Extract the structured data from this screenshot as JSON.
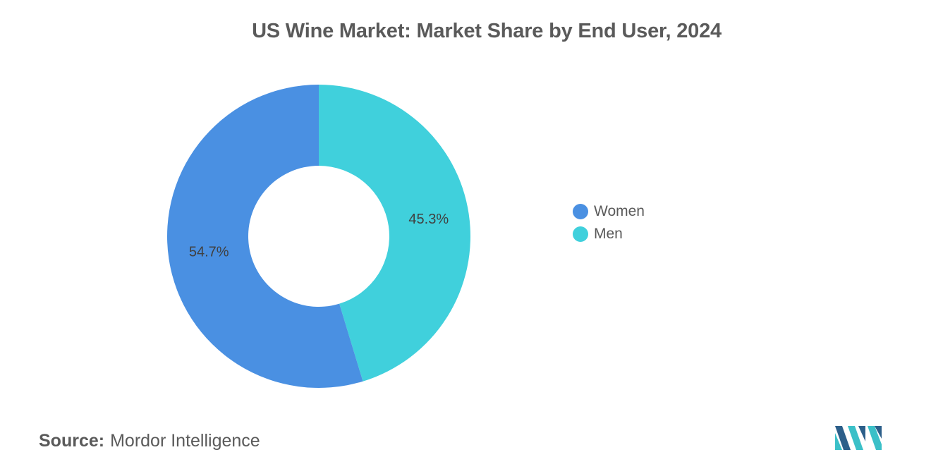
{
  "chart_data": {
    "type": "pie",
    "title": "US Wine Market: Market Share by End User, 2024",
    "donut": true,
    "slices": [
      {
        "label": "Women",
        "value": 54.7,
        "display": "54.7%",
        "color": "#4a90e2"
      },
      {
        "label": "Men",
        "value": 45.3,
        "display": "45.3%",
        "color": "#40d0dc"
      }
    ],
    "legend_position": "right"
  },
  "legend": {
    "items": [
      {
        "label": "Women",
        "color": "#4a90e2"
      },
      {
        "label": "Men",
        "color": "#40d0dc"
      }
    ]
  },
  "footer": {
    "source_label": "Source:",
    "source_value": "Mordor Intelligence"
  },
  "logo": {
    "icon": "mordor-intelligence-logo-icon",
    "colors": [
      "#2c5f8a",
      "#3bc0c8"
    ]
  }
}
